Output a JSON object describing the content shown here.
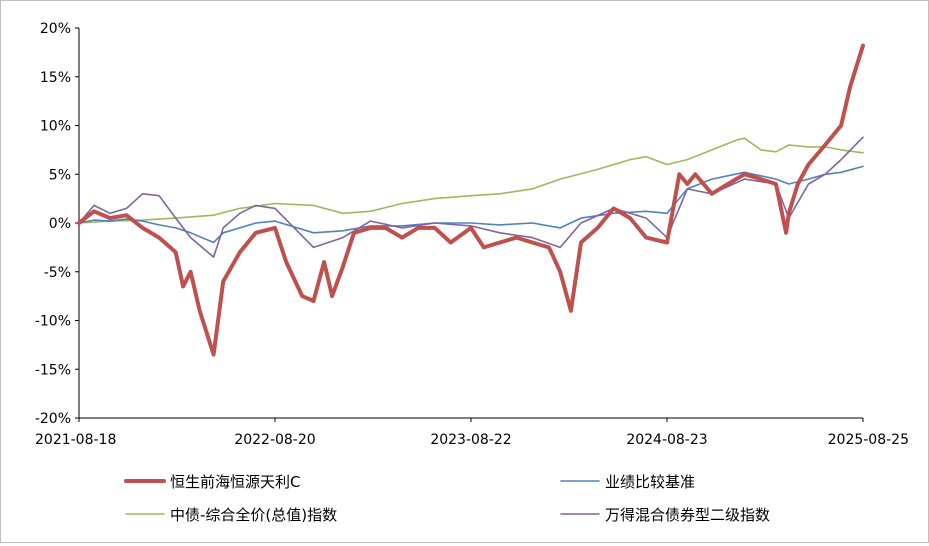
{
  "chart_data": {
    "type": "line",
    "title": "",
    "xlabel": "",
    "ylabel": "",
    "ylim": [
      -20,
      20
    ],
    "y_ticks": [
      -20,
      -15,
      -10,
      -5,
      0,
      5,
      10,
      15,
      20
    ],
    "y_tick_labels": [
      "-20%",
      "-15%",
      "-10%",
      "-5%",
      "0%",
      "5%",
      "10%",
      "15%",
      "20%"
    ],
    "x_tick_labels": [
      "2021-08-18",
      "2022-08-20",
      "2023-08-22",
      "2024-08-23",
      "2025-08-25"
    ],
    "x_range": [
      "2021-08-18",
      "2025-08-25"
    ],
    "grid": false,
    "legend_position": "bottom",
    "series": [
      {
        "name": "恒生前海恒源天利C",
        "color": "#c0504d",
        "x": [
          "2021-08-18",
          "2021-09-15",
          "2021-10-15",
          "2021-11-15",
          "2021-12-15",
          "2022-01-15",
          "2022-02-15",
          "2022-03-01",
          "2022-03-15",
          "2022-04-01",
          "2022-04-27",
          "2022-05-15",
          "2022-06-15",
          "2022-07-15",
          "2022-08-20",
          "2022-09-10",
          "2022-10-10",
          "2022-10-31",
          "2022-11-20",
          "2022-12-05",
          "2022-12-25",
          "2023-01-15",
          "2023-02-15",
          "2023-03-15",
          "2023-04-15",
          "2023-05-15",
          "2023-06-15",
          "2023-07-15",
          "2023-08-22",
          "2023-09-15",
          "2023-10-15",
          "2023-11-15",
          "2023-12-15",
          "2024-01-15",
          "2024-02-05",
          "2024-02-25",
          "2024-03-15",
          "2024-04-15",
          "2024-05-15",
          "2024-06-15",
          "2024-07-15",
          "2024-08-23",
          "2024-09-15",
          "2024-09-30",
          "2024-10-15",
          "2024-11-15",
          "2024-12-15",
          "2025-01-15",
          "2025-02-15",
          "2025-03-15",
          "2025-04-03",
          "2025-04-08",
          "2025-04-25",
          "2025-05-15",
          "2025-06-15",
          "2025-07-15",
          "2025-08-01",
          "2025-08-25"
        ],
        "values": [
          0,
          1.2,
          0.5,
          0.8,
          -0.5,
          -1.5,
          -3,
          -6.5,
          -5,
          -9,
          -13.5,
          -6,
          -3,
          -1,
          -0.5,
          -4,
          -7.5,
          -8,
          -4,
          -7.5,
          -4.5,
          -1,
          -0.5,
          -0.5,
          -1.5,
          -0.5,
          -0.5,
          -2,
          -0.5,
          -2.5,
          -2,
          -1.5,
          -2,
          -2.5,
          -5,
          -9,
          -2,
          -0.5,
          1.5,
          0.5,
          -1.5,
          -2,
          5,
          4,
          5,
          3,
          4,
          5,
          4.5,
          4,
          -1,
          1,
          4,
          6,
          8,
          10,
          14,
          18.2
        ]
      },
      {
        "name": "业绩比较基准",
        "color": "#4f81bd",
        "x": [
          "2021-08-18",
          "2021-09-15",
          "2021-10-15",
          "2021-11-15",
          "2021-12-15",
          "2022-01-15",
          "2022-02-15",
          "2022-03-15",
          "2022-04-27",
          "2022-05-15",
          "2022-06-15",
          "2022-07-15",
          "2022-08-20",
          "2022-10-31",
          "2022-12-25",
          "2023-02-15",
          "2023-04-15",
          "2023-06-15",
          "2023-08-22",
          "2023-10-15",
          "2023-12-15",
          "2024-02-05",
          "2024-03-15",
          "2024-05-15",
          "2024-07-15",
          "2024-08-23",
          "2024-09-30",
          "2024-11-15",
          "2025-01-15",
          "2025-03-15",
          "2025-04-08",
          "2025-05-15",
          "2025-06-15",
          "2025-07-15",
          "2025-08-25"
        ],
        "values": [
          0,
          0.3,
          0.2,
          0.4,
          0.2,
          -0.2,
          -0.5,
          -1,
          -2,
          -1,
          -0.5,
          0,
          0.2,
          -1,
          -0.8,
          -0.3,
          -0.3,
          0,
          0,
          -0.2,
          0,
          -0.5,
          0.5,
          1,
          1.2,
          1,
          3.5,
          4.5,
          5.2,
          4.5,
          4,
          4.5,
          5,
          5.2,
          5.8
        ]
      },
      {
        "name": "中债-综合全价(总值)指数",
        "color": "#9bbb59",
        "x": [
          "2021-08-18",
          "2021-10-15",
          "2021-12-15",
          "2022-02-15",
          "2022-04-27",
          "2022-06-15",
          "2022-08-20",
          "2022-10-31",
          "2022-12-25",
          "2023-02-15",
          "2023-04-15",
          "2023-06-15",
          "2023-08-22",
          "2023-10-15",
          "2023-12-15",
          "2024-02-05",
          "2024-04-15",
          "2024-06-15",
          "2024-07-15",
          "2024-08-23",
          "2024-09-30",
          "2024-11-15",
          "2024-12-31",
          "2025-01-15",
          "2025-02-15",
          "2025-03-15",
          "2025-04-08",
          "2025-05-15",
          "2025-06-15",
          "2025-07-15",
          "2025-08-25"
        ],
        "values": [
          0,
          0.2,
          0.3,
          0.5,
          0.8,
          1.5,
          2,
          1.8,
          1,
          1.2,
          2,
          2.5,
          2.8,
          3,
          3.5,
          4.5,
          5.5,
          6.5,
          6.8,
          6,
          6.5,
          7.5,
          8.5,
          8.7,
          7.5,
          7.3,
          8,
          7.8,
          7.8,
          7.5,
          7.2
        ]
      },
      {
        "name": "万得混合债券型二级指数",
        "color": "#8064a2",
        "x": [
          "2021-08-18",
          "2021-09-15",
          "2021-10-15",
          "2021-11-15",
          "2021-12-15",
          "2022-01-15",
          "2022-02-15",
          "2022-03-15",
          "2022-04-27",
          "2022-05-15",
          "2022-06-15",
          "2022-07-15",
          "2022-08-20",
          "2022-10-31",
          "2022-12-25",
          "2023-02-15",
          "2023-04-15",
          "2023-06-15",
          "2023-08-22",
          "2023-10-15",
          "2023-12-15",
          "2024-02-05",
          "2024-03-15",
          "2024-05-15",
          "2024-07-15",
          "2024-08-23",
          "2024-09-30",
          "2024-11-15",
          "2025-01-15",
          "2025-03-15",
          "2025-04-08",
          "2025-05-15",
          "2025-06-15",
          "2025-07-15",
          "2025-08-25"
        ],
        "values": [
          0,
          1.8,
          1,
          1.5,
          3,
          2.8,
          0.5,
          -1.5,
          -3.5,
          -0.5,
          1,
          1.8,
          1.5,
          -2.5,
          -1.5,
          0.2,
          -0.5,
          0,
          -0.3,
          -1,
          -1.5,
          -2.5,
          0,
          1.5,
          0.5,
          -1.5,
          3.5,
          3,
          4.5,
          4,
          0.5,
          4,
          5,
          6.5,
          8.8
        ]
      }
    ]
  }
}
